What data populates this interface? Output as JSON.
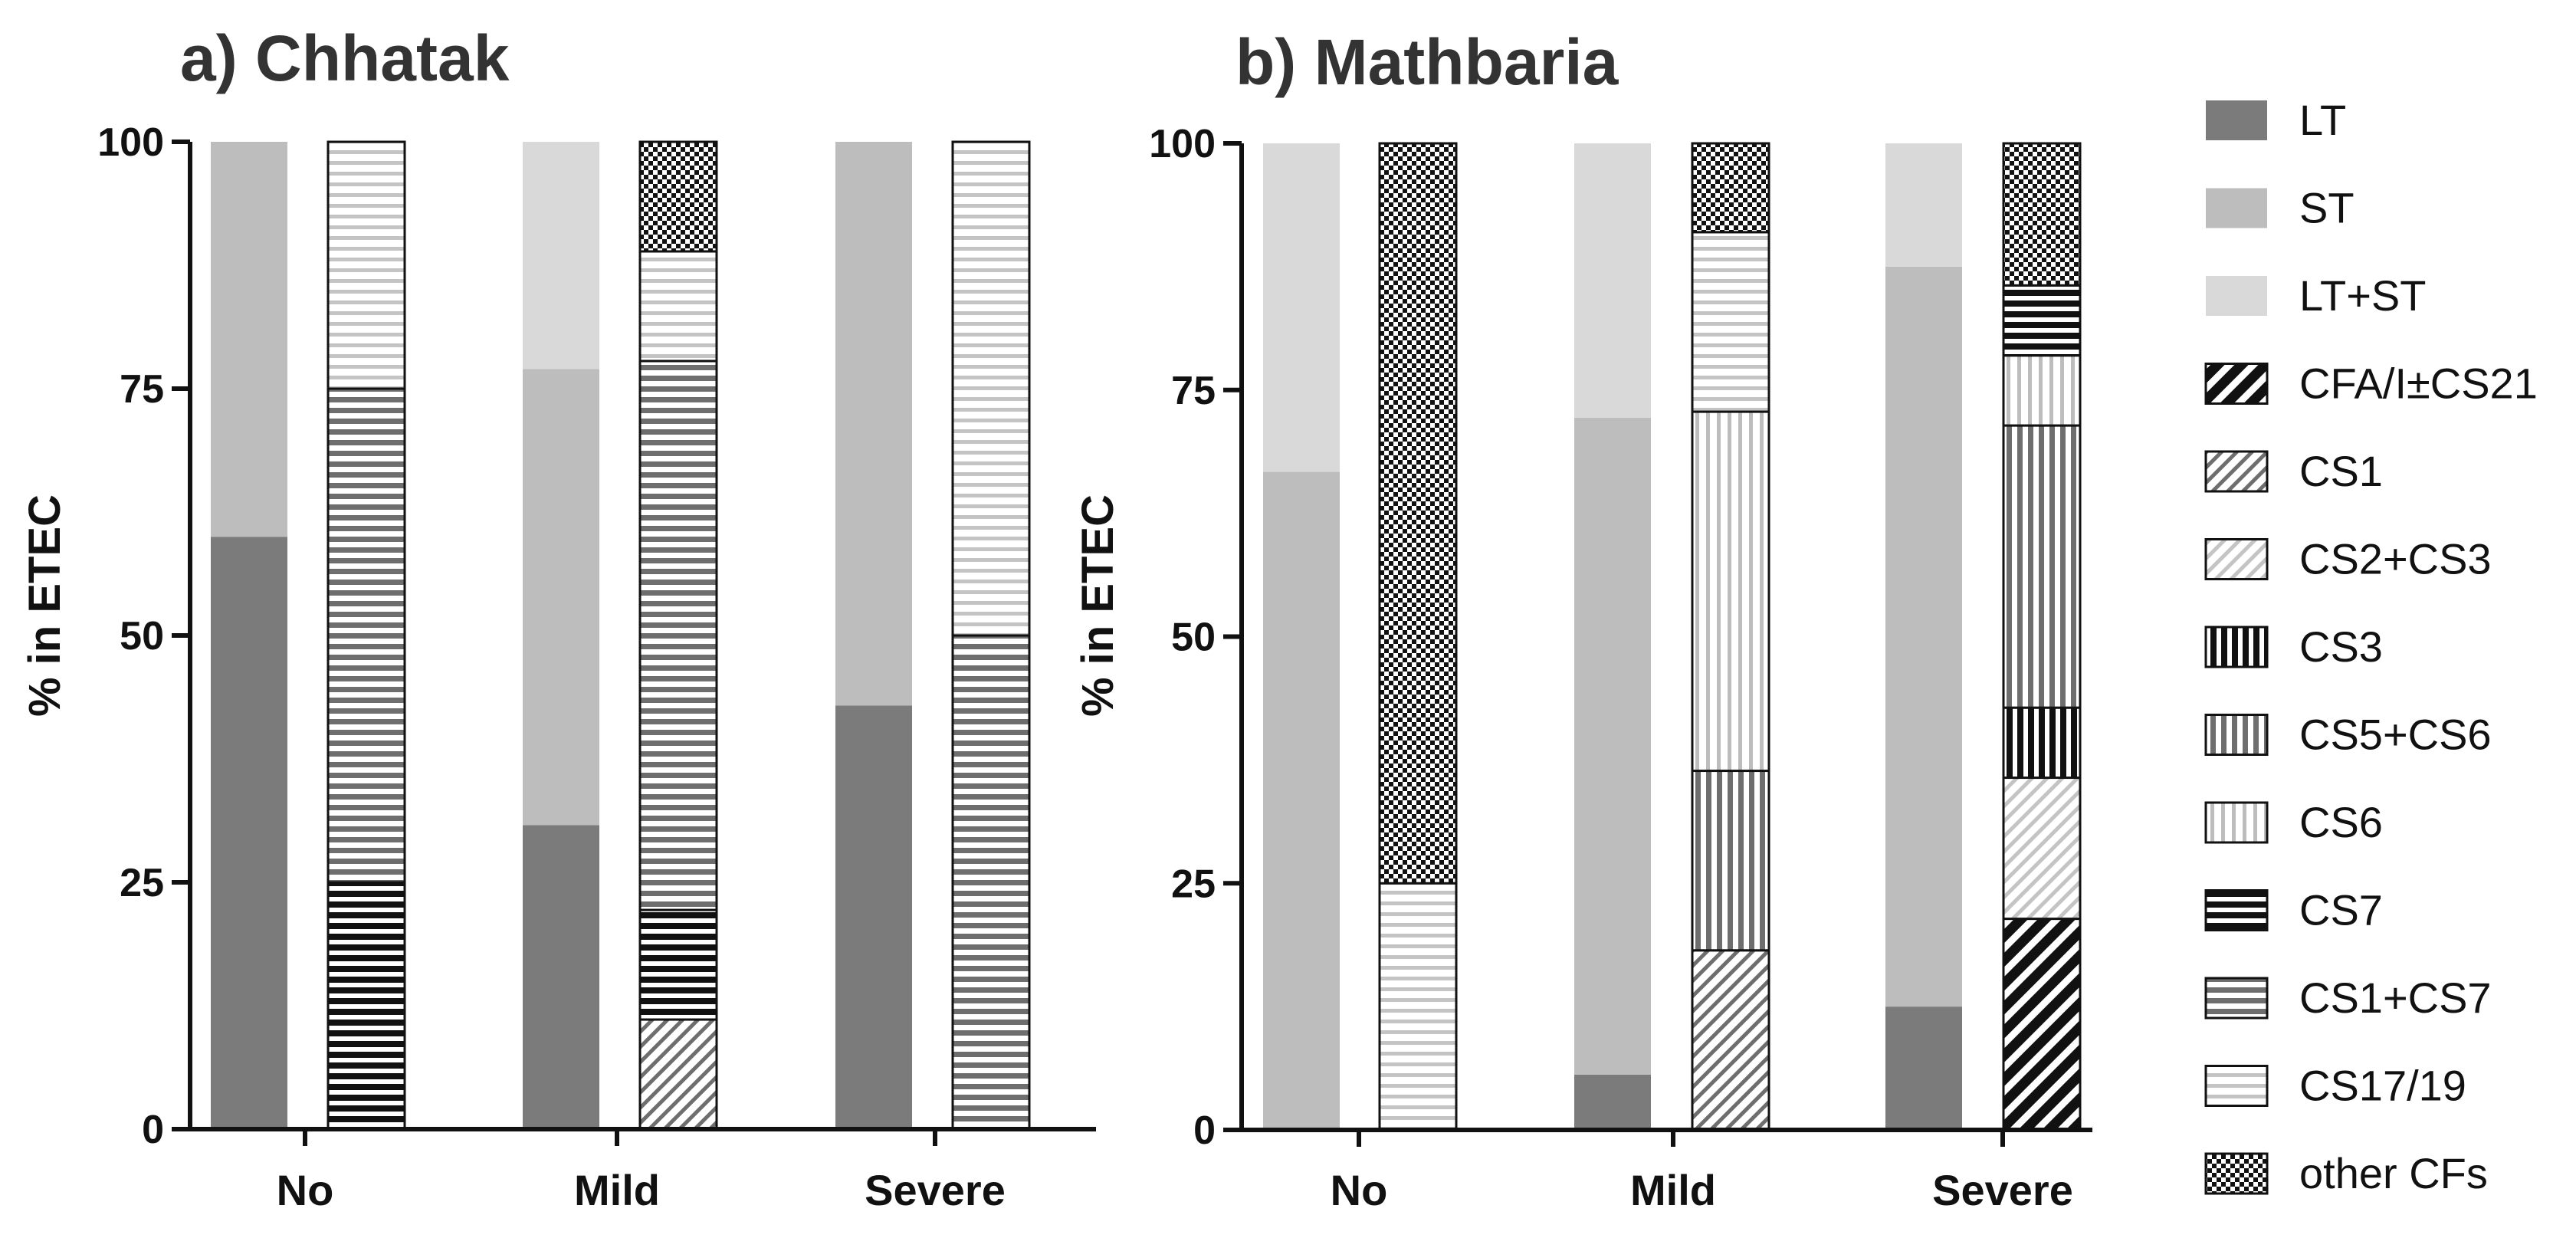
{
  "chart_data": [
    {
      "type": "bar",
      "stacked": true,
      "title": "a) Chhatak",
      "ylabel": "% in ETEC",
      "ylim": [
        0,
        100
      ],
      "yticks": [
        "0",
        "25",
        "50",
        "75",
        "100"
      ],
      "categories": [
        "No",
        "Mild",
        "Severe"
      ],
      "toxin_bars": {
        "No": [
          {
            "name": "LT",
            "value": 60
          },
          {
            "name": "ST",
            "value": 40
          }
        ],
        "Mild": [
          {
            "name": "LT",
            "value": 30.8
          },
          {
            "name": "ST",
            "value": 46.2
          },
          {
            "name": "LT+ST",
            "value": 23
          }
        ],
        "Severe": [
          {
            "name": "LT",
            "value": 42.9
          },
          {
            "name": "ST",
            "value": 57.1
          }
        ]
      },
      "cf_bars": {
        "No": [
          {
            "name": "CS7",
            "value": 25
          },
          {
            "name": "CS1+CS7",
            "value": 50
          },
          {
            "name": "CS17/19",
            "value": 25
          }
        ],
        "Mild": [
          {
            "name": "CS1",
            "value": 11.1
          },
          {
            "name": "CS7",
            "value": 11.1
          },
          {
            "name": "CS1+CS7",
            "value": 55.6
          },
          {
            "name": "CS17/19",
            "value": 11.1
          },
          {
            "name": "other CFs",
            "value": 11.1
          }
        ],
        "Severe": [
          {
            "name": "CS1+CS7",
            "value": 50
          },
          {
            "name": "CS17/19",
            "value": 50
          }
        ]
      }
    },
    {
      "type": "bar",
      "stacked": true,
      "title": "b) Mathbaria",
      "ylabel": "% in ETEC",
      "ylim": [
        0,
        100
      ],
      "yticks": [
        "0",
        "25",
        "50",
        "75",
        "100"
      ],
      "categories": [
        "No",
        "Mild",
        "Severe"
      ],
      "toxin_bars": {
        "No": [
          {
            "name": "ST",
            "value": 66.7
          },
          {
            "name": "LT+ST",
            "value": 33.3
          }
        ],
        "Mild": [
          {
            "name": "LT",
            "value": 5.6
          },
          {
            "name": "ST",
            "value": 66.6
          },
          {
            "name": "LT+ST",
            "value": 27.8
          }
        ],
        "Severe": [
          {
            "name": "LT",
            "value": 12.5
          },
          {
            "name": "ST",
            "value": 75
          },
          {
            "name": "LT+ST",
            "value": 12.5
          }
        ]
      },
      "cf_bars": {
        "No": [
          {
            "name": "CS17/19",
            "value": 25
          },
          {
            "name": "other CFs",
            "value": 75
          }
        ],
        "Mild": [
          {
            "name": "CS1",
            "value": 18.2
          },
          {
            "name": "CS5+CS6",
            "value": 18.2
          },
          {
            "name": "CS6",
            "value": 36.4
          },
          {
            "name": "CS17/19",
            "value": 18.2
          },
          {
            "name": "other CFs",
            "value": 9
          }
        ],
        "Severe": [
          {
            "name": "CFA/I±CS21",
            "value": 21.4
          },
          {
            "name": "CS2+CS3",
            "value": 14.3
          },
          {
            "name": "CS3",
            "value": 7.1
          },
          {
            "name": "CS5+CS6",
            "value": 28.6
          },
          {
            "name": "CS6",
            "value": 7.1
          },
          {
            "name": "CS7",
            "value": 7.1
          },
          {
            "name": "other CFs",
            "value": 14.4
          }
        ]
      }
    }
  ],
  "legend": {
    "placement": "right",
    "items": [
      {
        "name": "LT",
        "style": "solid",
        "color": "#7b7b7b"
      },
      {
        "name": "ST",
        "style": "solid",
        "color": "#bdbdbd"
      },
      {
        "name": "LT+ST",
        "style": "solid",
        "color": "#d9d9d9"
      },
      {
        "name": "CFA/I±CS21",
        "style": "pattern",
        "pattern": "diag-dark"
      },
      {
        "name": "CS1",
        "style": "pattern",
        "pattern": "diag-grey"
      },
      {
        "name": "CS2+CS3",
        "style": "pattern",
        "pattern": "diag-light"
      },
      {
        "name": "CS3",
        "style": "pattern",
        "pattern": "vert-dark"
      },
      {
        "name": "CS5+CS6",
        "style": "pattern",
        "pattern": "vert-grey"
      },
      {
        "name": "CS6",
        "style": "pattern",
        "pattern": "vert-light"
      },
      {
        "name": "CS7",
        "style": "pattern",
        "pattern": "horiz-dark"
      },
      {
        "name": "CS1+CS7",
        "style": "pattern",
        "pattern": "horiz-grey"
      },
      {
        "name": "CS17/19",
        "style": "pattern",
        "pattern": "horiz-light"
      },
      {
        "name": "other CFs",
        "style": "pattern",
        "pattern": "check"
      }
    ]
  }
}
